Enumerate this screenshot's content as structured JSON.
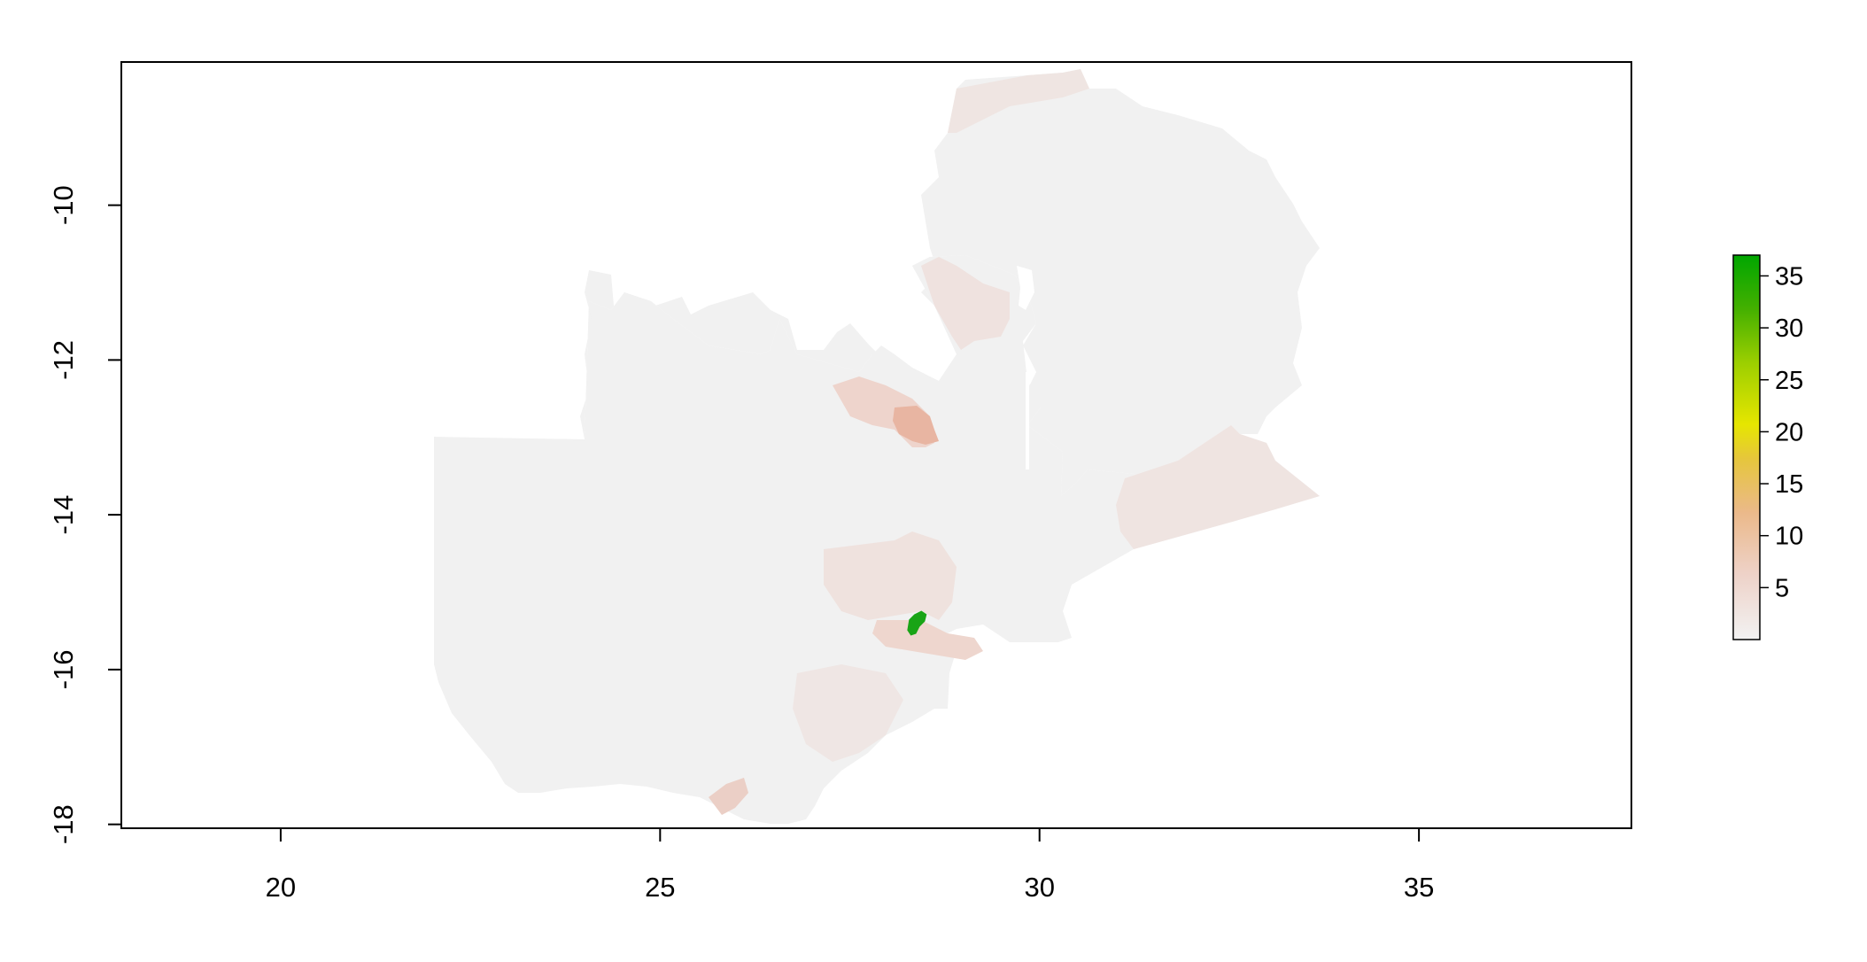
{
  "map": {
    "type": "raster",
    "x_axis": {
      "range": [
        17.9,
        37.8
      ],
      "ticks": [
        20,
        25,
        30,
        35
      ]
    },
    "y_axis": {
      "range": [
        -18.05,
        -8.15
      ],
      "ticks": [
        -10,
        -12,
        -14,
        -16,
        -18
      ]
    },
    "x_tick_labels": [
      "20",
      "25",
      "30",
      "35"
    ],
    "y_tick_labels": [
      "-10",
      "-12",
      "-14",
      "-16",
      "-18"
    ],
    "legend": {
      "placement": "right",
      "scale_min": 0,
      "scale_max": 37,
      "ticks": [
        5,
        10,
        15,
        20,
        25,
        30,
        35
      ],
      "tick_labels": [
        "5",
        "10",
        "15",
        "20",
        "25",
        "30",
        "35"
      ],
      "colors": [
        "#f2f2f2",
        "#ebb98a",
        "#e6c63c",
        "#e6e600",
        "#9ccf00",
        "#44b000",
        "#00a600"
      ]
    },
    "colors": {
      "base": "#f1f1f1",
      "low_pink": "#efe2df",
      "medium_pink": "#eecfc6",
      "high_salmon": "#e8b5a2",
      "hotspot_green": "#19a416"
    },
    "highlighted_regions": [
      {
        "name": "",
        "value": 36
      },
      {
        "name": "",
        "value": 9
      }
    ]
  }
}
